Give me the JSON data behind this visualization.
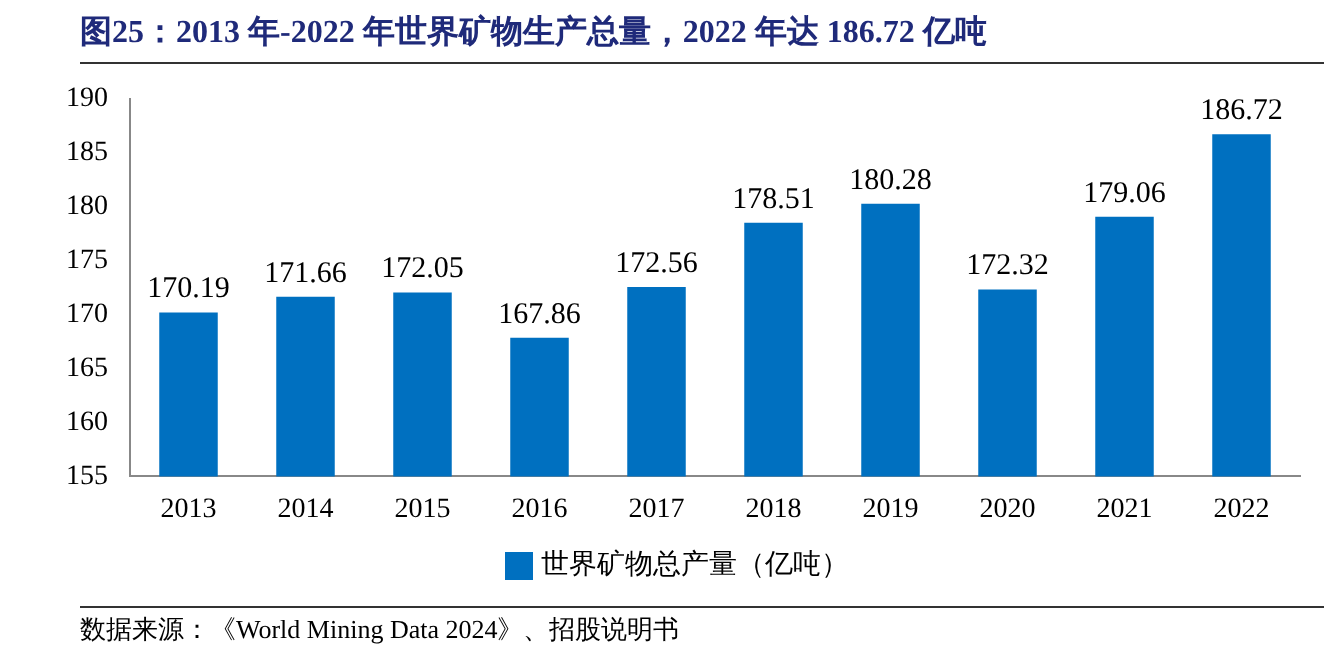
{
  "chart_data": {
    "type": "bar",
    "title": "图25：2013 年-2022 年世界矿物生产总量，2022 年达 186.72 亿吨",
    "categories": [
      "2013",
      "2014",
      "2015",
      "2016",
      "2017",
      "2018",
      "2019",
      "2020",
      "2021",
      "2022"
    ],
    "series": [
      {
        "name": "世界矿物总产量（亿吨）",
        "color": "#0070c0",
        "values": [
          170.19,
          171.66,
          172.05,
          167.86,
          172.56,
          178.51,
          180.28,
          172.32,
          179.06,
          186.72
        ]
      }
    ],
    "ylim": [
      155,
      190
    ],
    "yticks": [
      155,
      160,
      165,
      170,
      175,
      180,
      185,
      190
    ],
    "grid": false,
    "legend": "bottom",
    "data_labels": true,
    "annotations": [
      "数据来源：《World Mining Data 2024》、招股说明书"
    ]
  }
}
